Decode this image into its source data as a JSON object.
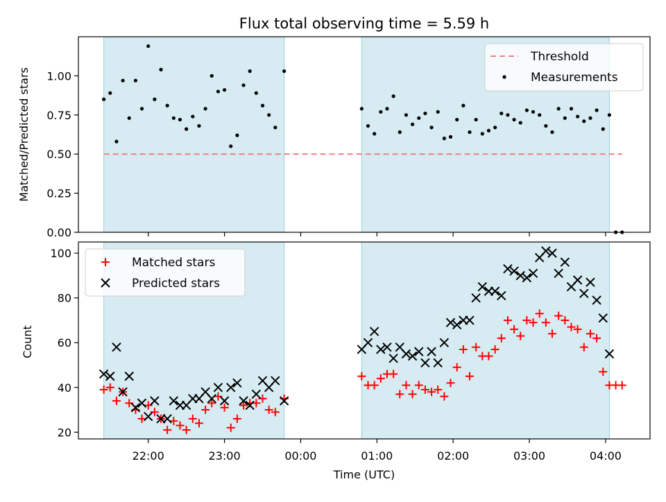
{
  "chart_data": [
    {
      "type": "scatter",
      "title": "Flux total observing time = 5.59 h",
      "xlabel": "",
      "ylabel": "Matched/Predicted stars",
      "ylim": [
        0,
        1.25
      ],
      "xlim": [
        "21:05",
        "04:35"
      ],
      "yticks": [
        "0.00",
        "0.25",
        "0.50",
        "0.75",
        "1.00"
      ],
      "legend_position": "top-right",
      "shaded_intervals": [
        [
          "21:25",
          "23:47"
        ],
        [
          "00:48",
          "04:03"
        ]
      ],
      "threshold": {
        "name": "Threshold",
        "value": 0.5,
        "x_range": [
          "21:25",
          "04:13"
        ],
        "color": "#f08080"
      },
      "series": [
        {
          "name": "Measurements",
          "color": "#000000",
          "x": [
            "21:25",
            "21:30",
            "21:35",
            "21:40",
            "21:45",
            "21:50",
            "21:55",
            "22:00",
            "22:05",
            "22:10",
            "22:15",
            "22:20",
            "22:25",
            "22:30",
            "22:35",
            "22:40",
            "22:45",
            "22:50",
            "22:55",
            "23:00",
            "23:05",
            "23:10",
            "23:15",
            "23:20",
            "23:25",
            "23:30",
            "23:35",
            "23:40",
            "23:47",
            "00:48",
            "00:53",
            "00:58",
            "01:03",
            "01:08",
            "01:13",
            "01:18",
            "01:23",
            "01:28",
            "01:33",
            "01:38",
            "01:43",
            "01:48",
            "01:53",
            "01:58",
            "02:03",
            "02:08",
            "02:13",
            "02:18",
            "02:23",
            "02:28",
            "02:33",
            "02:38",
            "02:43",
            "02:48",
            "02:53",
            "02:58",
            "03:03",
            "03:08",
            "03:13",
            "03:18",
            "03:23",
            "03:28",
            "03:33",
            "03:38",
            "03:43",
            "03:48",
            "03:53",
            "03:58",
            "04:03",
            "04:08",
            "04:13"
          ],
          "y": [
            0.85,
            0.89,
            0.58,
            0.97,
            0.73,
            0.97,
            0.79,
            1.19,
            0.85,
            1.04,
            0.81,
            0.73,
            0.72,
            0.66,
            0.74,
            0.68,
            0.79,
            1.0,
            0.9,
            0.91,
            0.55,
            0.62,
            0.94,
            1.03,
            0.89,
            0.81,
            0.75,
            0.67,
            1.03,
            0.79,
            0.68,
            0.63,
            0.77,
            0.79,
            0.87,
            0.64,
            0.75,
            0.69,
            0.73,
            0.76,
            0.67,
            0.77,
            0.6,
            0.61,
            0.72,
            0.81,
            0.64,
            0.72,
            0.63,
            0.65,
            0.67,
            0.76,
            0.75,
            0.72,
            0.7,
            0.78,
            0.77,
            0.75,
            0.68,
            0.64,
            0.79,
            0.73,
            0.79,
            0.74,
            0.71,
            0.73,
            0.78,
            0.66,
            0.75,
            0.0,
            0.0
          ]
        }
      ]
    },
    {
      "type": "scatter",
      "title": "",
      "xlabel": "Time (UTC)",
      "ylabel": "Count",
      "ylim": [
        17,
        105
      ],
      "xlim": [
        "21:05",
        "04:35"
      ],
      "yticks": [
        "20",
        "40",
        "60",
        "80",
        "100"
      ],
      "xticks": [
        "22:00",
        "23:00",
        "00:00",
        "01:00",
        "02:00",
        "03:00",
        "04:00"
      ],
      "legend_position": "top-left",
      "shaded_intervals": [
        [
          "21:25",
          "23:47"
        ],
        [
          "00:48",
          "04:03"
        ]
      ],
      "series": [
        {
          "name": "Matched stars",
          "color": "#ff0000",
          "marker": "plus",
          "x": [
            "21:25",
            "21:30",
            "21:35",
            "21:40",
            "21:45",
            "21:50",
            "21:55",
            "22:00",
            "22:05",
            "22:10",
            "22:15",
            "22:20",
            "22:25",
            "22:30",
            "22:35",
            "22:40",
            "22:45",
            "22:50",
            "22:55",
            "23:00",
            "23:05",
            "23:10",
            "23:15",
            "23:20",
            "23:25",
            "23:30",
            "23:35",
            "23:40",
            "23:47",
            "00:48",
            "00:53",
            "00:58",
            "01:03",
            "01:08",
            "01:13",
            "01:18",
            "01:23",
            "01:28",
            "01:33",
            "01:38",
            "01:43",
            "01:48",
            "01:53",
            "01:58",
            "02:03",
            "02:08",
            "02:13",
            "02:18",
            "02:23",
            "02:28",
            "02:33",
            "02:38",
            "02:43",
            "02:48",
            "02:53",
            "02:58",
            "03:03",
            "03:08",
            "03:13",
            "03:18",
            "03:23",
            "03:28",
            "03:33",
            "03:38",
            "03:43",
            "03:48",
            "03:53",
            "03:58",
            "04:03",
            "04:08",
            "04:13"
          ],
          "y": [
            39,
            40,
            34,
            38,
            33,
            30,
            26,
            32,
            29,
            26,
            21,
            25,
            23,
            21,
            26,
            24,
            30,
            33,
            36,
            31,
            22,
            26,
            32,
            33,
            33,
            35,
            30,
            29,
            35,
            45,
            41,
            41,
            44,
            46,
            46,
            37,
            41,
            37,
            41,
            39,
            38,
            39,
            36,
            42,
            49,
            57,
            45,
            58,
            54,
            54,
            57,
            62,
            70,
            66,
            63,
            70,
            69,
            73,
            69,
            64,
            72,
            70,
            67,
            66,
            58,
            64,
            62,
            47,
            41,
            41,
            41
          ]
        },
        {
          "name": "Predicted stars",
          "color": "#000000",
          "marker": "x",
          "x": [
            "21:25",
            "21:30",
            "21:35",
            "21:40",
            "21:45",
            "21:50",
            "21:55",
            "22:00",
            "22:05",
            "22:10",
            "22:15",
            "22:20",
            "22:25",
            "22:30",
            "22:35",
            "22:40",
            "22:45",
            "22:50",
            "22:55",
            "23:00",
            "23:05",
            "23:10",
            "23:15",
            "23:20",
            "23:25",
            "23:30",
            "23:35",
            "23:40",
            "23:47",
            "00:48",
            "00:53",
            "00:58",
            "01:03",
            "01:08",
            "01:13",
            "01:18",
            "01:23",
            "01:28",
            "01:33",
            "01:38",
            "01:43",
            "01:48",
            "01:53",
            "01:58",
            "02:03",
            "02:08",
            "02:13",
            "02:18",
            "02:23",
            "02:28",
            "02:33",
            "02:38",
            "02:43",
            "02:48",
            "02:53",
            "02:58",
            "03:03",
            "03:08",
            "03:13",
            "03:18",
            "03:23",
            "03:28",
            "03:33",
            "03:38",
            "03:43",
            "03:48",
            "03:53",
            "03:58",
            "04:03"
          ],
          "y": [
            46,
            45,
            58,
            38,
            45,
            31,
            33,
            27,
            34,
            26,
            26,
            34,
            32,
            32,
            35,
            35,
            38,
            35,
            40,
            34,
            40,
            42,
            34,
            32,
            37,
            43,
            40,
            43,
            34,
            57,
            60,
            65,
            57,
            58,
            53,
            58,
            55,
            54,
            56,
            51,
            56,
            51,
            60,
            69,
            68,
            70,
            70,
            80,
            85,
            83,
            83,
            81,
            93,
            92,
            90,
            89,
            91,
            98,
            101,
            100,
            91,
            96,
            85,
            88,
            82,
            87,
            79,
            71,
            55
          ]
        }
      ]
    }
  ]
}
